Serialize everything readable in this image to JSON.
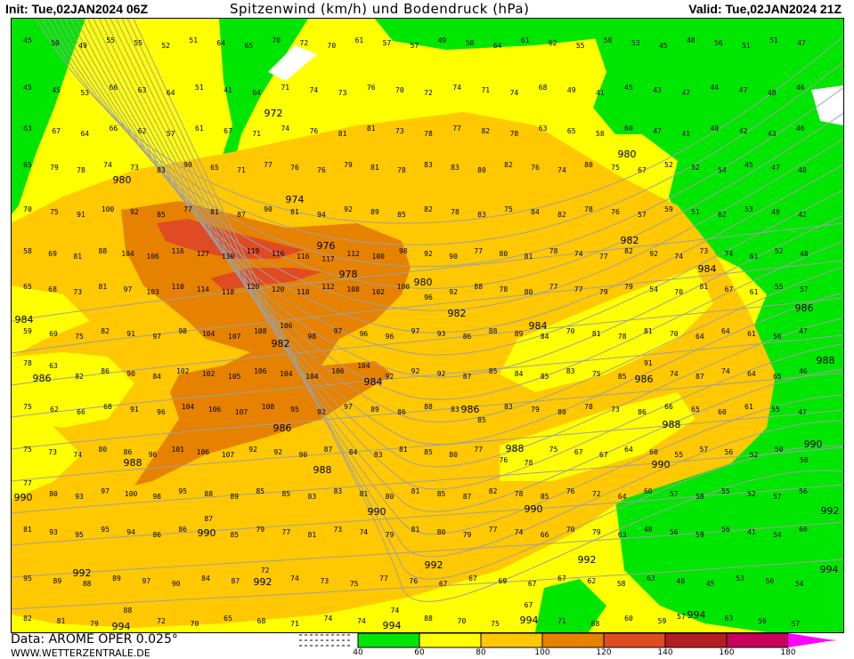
{
  "header": {
    "init": "Init: Tue,02JAN2024 06Z",
    "title": "Spitzenwind (km/h) und Bodendruck (hPa)",
    "valid": "Valid: Tue,02JAN2024 21Z"
  },
  "footer": {
    "data_source": "Data: AROME OPER 0.025°",
    "website": "WWW.WETTERZENTRALE.DE"
  },
  "legend": {
    "ticks": [
      "40",
      "60",
      "80",
      "100",
      "120",
      "140",
      "160",
      "180"
    ],
    "colors": [
      "#00e600",
      "#ffff00",
      "#ffc800",
      "#e68200",
      "#e04b23",
      "#b41e1e",
      "#c8005a",
      "#ff00ff"
    ]
  },
  "map": {
    "colors": {
      "green": "#00e600",
      "yellow": "#ffff00",
      "orange": "#ffc800",
      "dark_orange": "#e68200",
      "red": "#e04b23",
      "isobar": "#a0a0a0",
      "water": "#ffffff"
    },
    "isobar_labels": [
      "972",
      "974",
      "976",
      "978",
      "980",
      "980",
      "980",
      "982",
      "982",
      "982",
      "984",
      "984",
      "984",
      "984",
      "986",
      "986",
      "986",
      "986",
      "986",
      "988",
      "988",
      "988",
      "988",
      "988",
      "990",
      "990",
      "990",
      "990",
      "990",
      "990",
      "992",
      "992",
      "992",
      "992",
      "992",
      "994",
      "994",
      "994",
      "994",
      "994"
    ],
    "wind_rows": [
      [
        45,
        50,
        49,
        55,
        55,
        52,
        51,
        64,
        65,
        70,
        72,
        70,
        61,
        57,
        57,
        49,
        50,
        64,
        61,
        62,
        55,
        50,
        53,
        45,
        48,
        56,
        51,
        51,
        47
      ],
      [
        45,
        45,
        53,
        66,
        63,
        64,
        51,
        41,
        64,
        71,
        74,
        73,
        76,
        70,
        72,
        74,
        71,
        74,
        68,
        49,
        41,
        45,
        43,
        47,
        44,
        47,
        48,
        46
      ],
      [
        63,
        67,
        64,
        66,
        62,
        57,
        61,
        67,
        71,
        74,
        76,
        81,
        81,
        73,
        78,
        77,
        82,
        78,
        63,
        65,
        58,
        60,
        47,
        41,
        40,
        42,
        43,
        46
      ],
      [
        65,
        79,
        78,
        74,
        73,
        83,
        90,
        65,
        71,
        77,
        76,
        76,
        79,
        81,
        78,
        83,
        83,
        80,
        82,
        76,
        74,
        80,
        75,
        67,
        52,
        52,
        54,
        45,
        47,
        48
      ],
      [
        70,
        75,
        91,
        100,
        92,
        85,
        77,
        81,
        87,
        90,
        81,
        94,
        92,
        89,
        85,
        82,
        78,
        83,
        75,
        84,
        82,
        78,
        76,
        57,
        59,
        51,
        62,
        53,
        49,
        42
      ],
      [
        58,
        69,
        81,
        88,
        104,
        106,
        116,
        127,
        130,
        119,
        116,
        116,
        117,
        112,
        100,
        98,
        92,
        90,
        77,
        80,
        81,
        78,
        74,
        77,
        82,
        92,
        74,
        73,
        74,
        61,
        52,
        48
      ],
      [
        65,
        68,
        73,
        81,
        97,
        103,
        110,
        114,
        118,
        120,
        120,
        118,
        112,
        108,
        102,
        100,
        96,
        92,
        88,
        78,
        80,
        77,
        77,
        79,
        79,
        54,
        70,
        81,
        67,
        61,
        55,
        57
      ],
      [
        59,
        69,
        75,
        82,
        91,
        97,
        98,
        104,
        107,
        108,
        106,
        98,
        97,
        96,
        96,
        97,
        93,
        86,
        88,
        89,
        84,
        70,
        81,
        78,
        81,
        70,
        64,
        64,
        61,
        56,
        47
      ],
      [
        78,
        63,
        82,
        86,
        90,
        84,
        102,
        102,
        105,
        106,
        104,
        104,
        106,
        104,
        92,
        92,
        92,
        87,
        85,
        84,
        85,
        83,
        75,
        85,
        91,
        74,
        87,
        74,
        64,
        65,
        46
      ],
      [
        75,
        62,
        66,
        68,
        91,
        96,
        104,
        106,
        107,
        108,
        95,
        92,
        97,
        89,
        86,
        88,
        83,
        85,
        83,
        79,
        80,
        78,
        73,
        86,
        66,
        65,
        60,
        61,
        55,
        47
      ],
      [
        75,
        73,
        74,
        80,
        86,
        96,
        101,
        106,
        107,
        92,
        92,
        90,
        87,
        84,
        83,
        81,
        85,
        80,
        77,
        76,
        78,
        75,
        67,
        67,
        64,
        60,
        55,
        57,
        56,
        52,
        50,
        50
      ],
      [
        77,
        80,
        93,
        97,
        100,
        98,
        95,
        88,
        89,
        85,
        85,
        83,
        83,
        81,
        80,
        81,
        85,
        87,
        82,
        78,
        85,
        76,
        72,
        64,
        60,
        57,
        58,
        55,
        52,
        57,
        56
      ],
      [
        81,
        93,
        95,
        95,
        94,
        86,
        86,
        87,
        85,
        79,
        77,
        81,
        73,
        74,
        79,
        81,
        80,
        79,
        77,
        74,
        66,
        70,
        79,
        63,
        48,
        56,
        59,
        56,
        41,
        54,
        60
      ],
      [
        95,
        89,
        88,
        89,
        97,
        90,
        84,
        87,
        72,
        74,
        73,
        75,
        77,
        76,
        67,
        67,
        69,
        67,
        67,
        62,
        58,
        63,
        48,
        45,
        53,
        50,
        54
      ],
      [
        82,
        81,
        79,
        88,
        72,
        70,
        65,
        68,
        71,
        74,
        74,
        74,
        88,
        70,
        75,
        67,
        71,
        68,
        60,
        59,
        57,
        63,
        59,
        57
      ]
    ]
  }
}
